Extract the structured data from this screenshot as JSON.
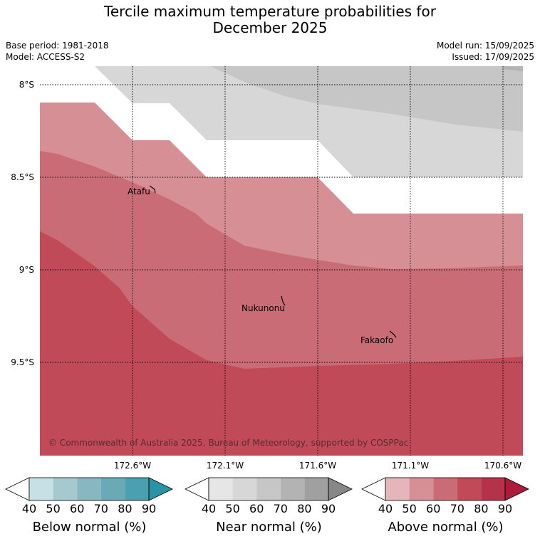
{
  "title_line1": "Tercile maximum temperature probabilities for",
  "title_line2": "December 2025",
  "base_period": "Base period: 1981-2018",
  "model": "Model: ACCESS-S2",
  "model_run": "Model run: 15/09/2025",
  "issued": "Issued: 17/09/2025",
  "map": {
    "lat_labels": [
      "8°S",
      "8.5°S",
      "9°S",
      "9.5°S"
    ],
    "lon_labels": [
      "172.6°W",
      "172.1°W",
      "171.6°W",
      "171.1°W",
      "170.6°W"
    ],
    "places": [
      "Atafu",
      "Nukunonu",
      "Fakaofo"
    ],
    "copyright": "© Commonwealth of Australia 2025, Bureau of Meteorology, supported by COSPPac"
  },
  "colorbars": [
    {
      "title": "Below normal (%)",
      "ticks": [
        "40",
        "50",
        "60",
        "70",
        "80",
        "90"
      ],
      "colors": [
        "#ffffff",
        "#c6e0e6",
        "#a6c9cf",
        "#88b6c1",
        "#6aa9b6",
        "#4ba0b0",
        "#2c93a4"
      ]
    },
    {
      "title": "Near normal (%)",
      "ticks": [
        "40",
        "50",
        "60",
        "70",
        "80",
        "90"
      ],
      "colors": [
        "#ffffff",
        "#e6e6e6",
        "#d7d7d7",
        "#c6c6c6",
        "#b3b3b3",
        "#a0a0a0",
        "#878787"
      ]
    },
    {
      "title": "Above normal (%)",
      "ticks": [
        "40",
        "50",
        "60",
        "70",
        "80",
        "90"
      ],
      "colors": [
        "#ffffff",
        "#e4b5bb",
        "#d69095",
        "#ca6c75",
        "#c04a57",
        "#b5334a",
        "#aa1c3a"
      ]
    }
  ]
}
